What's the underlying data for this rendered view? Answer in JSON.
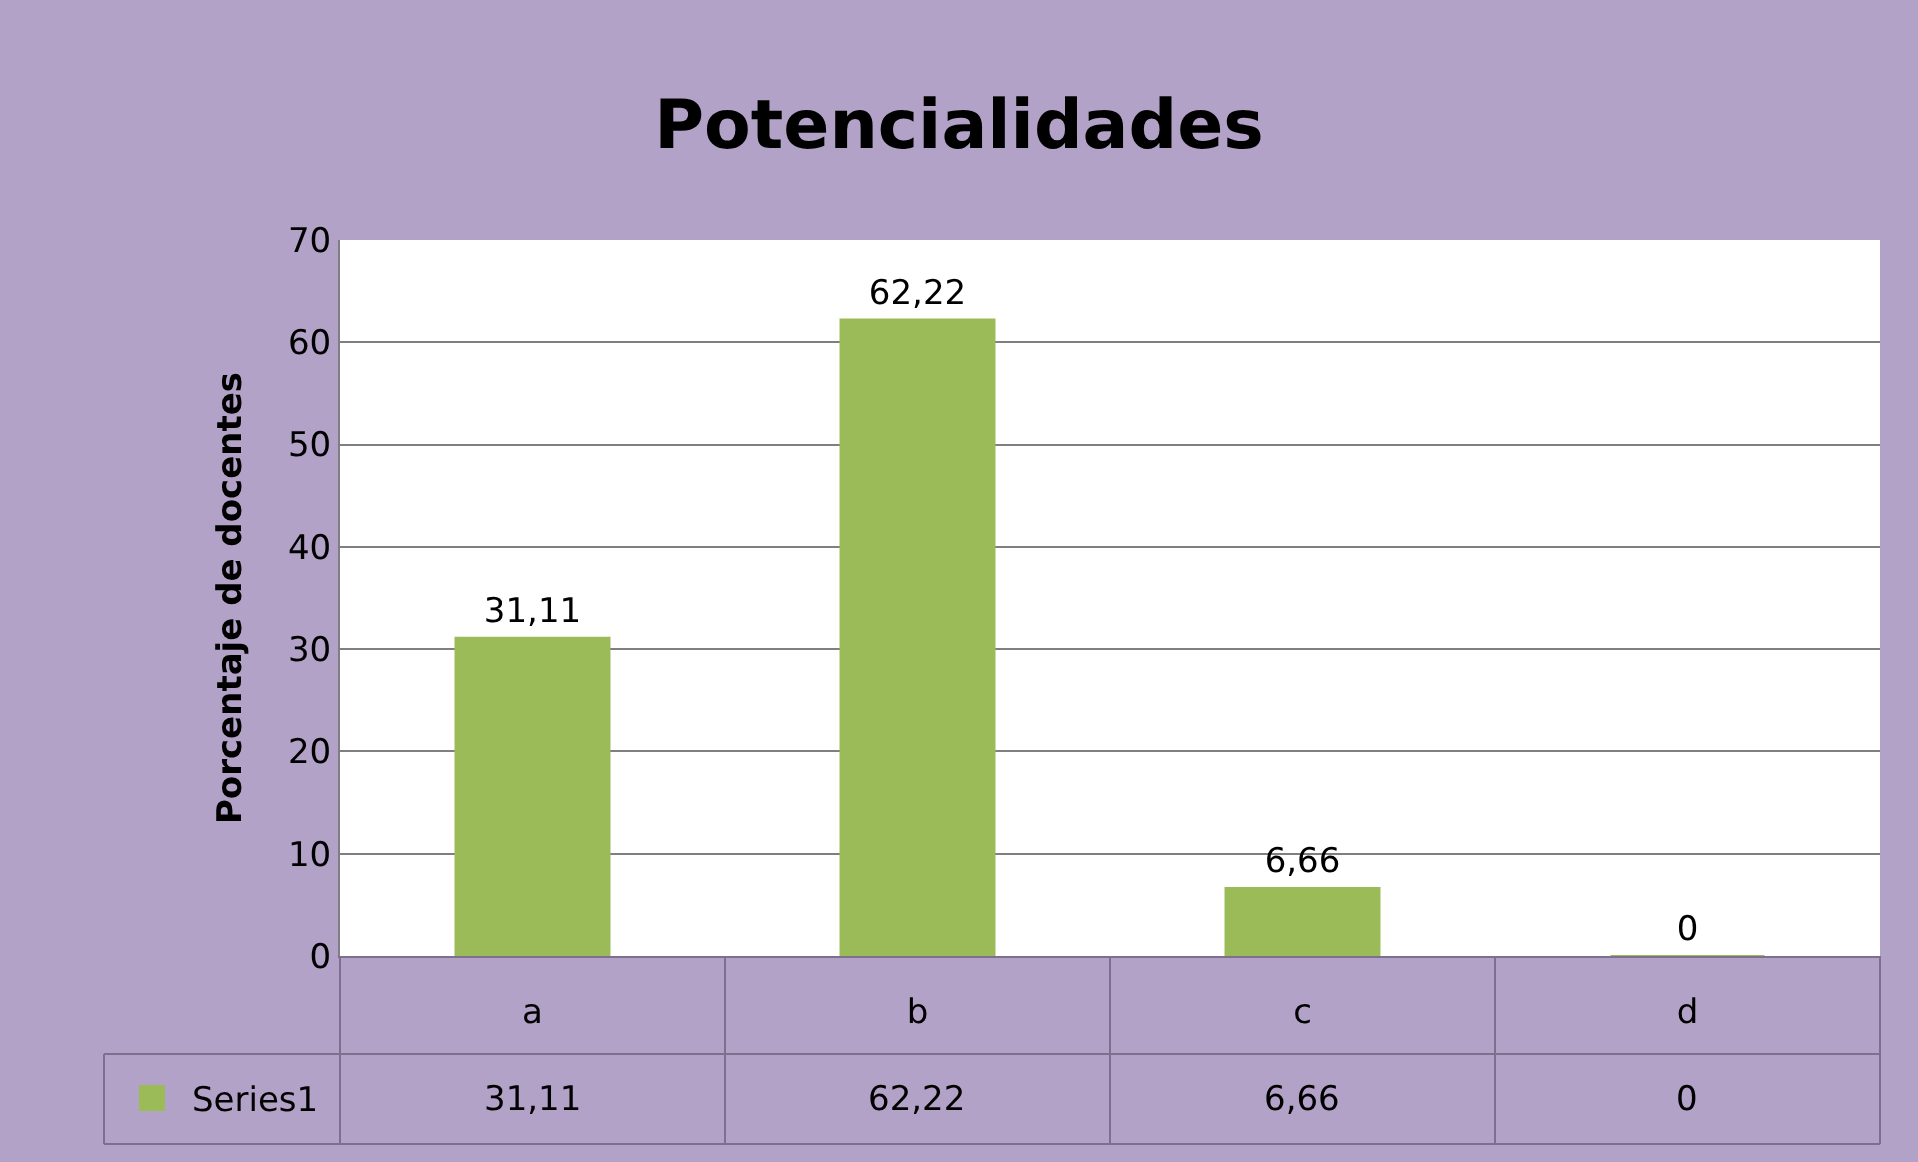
{
  "chart_data": {
    "type": "bar",
    "title": "Potencialidades",
    "ylabel": "Porcentaje de docentes",
    "categories": [
      "a",
      "b",
      "c",
      "d"
    ],
    "series": [
      {
        "name": "Series1",
        "color": "#9bbb59",
        "values": [
          31.11,
          62.22,
          6.66,
          0
        ],
        "value_labels": [
          "31,11",
          "62,22",
          "6,66",
          "0"
        ]
      }
    ],
    "ylim": [
      0,
      70
    ],
    "yticks": [
      0,
      10,
      20,
      30,
      40,
      50,
      60,
      70
    ],
    "grid": "y",
    "legend": "bottom left"
  }
}
